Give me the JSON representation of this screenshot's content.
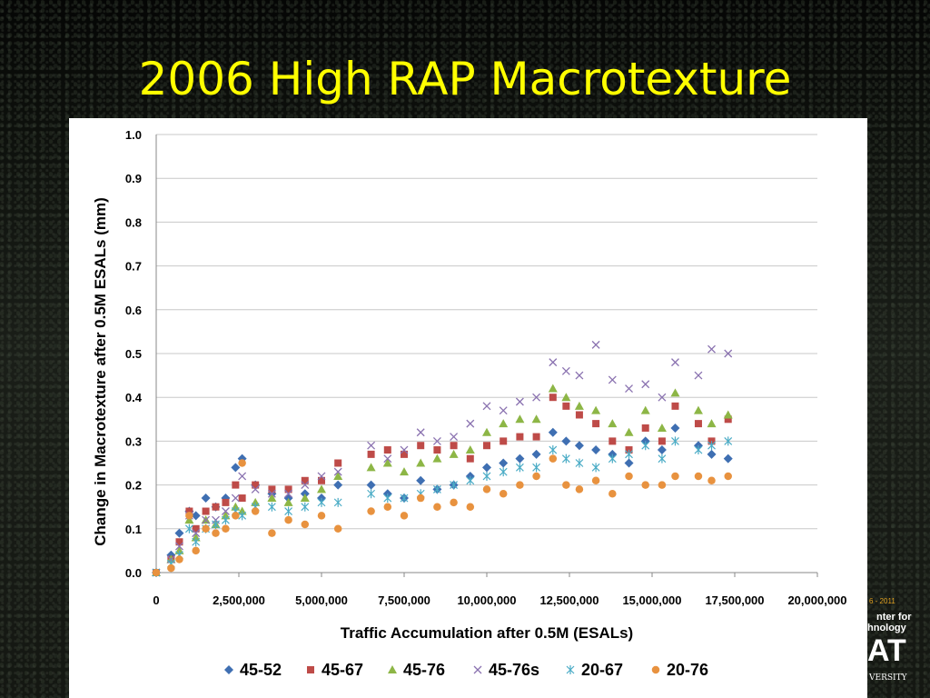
{
  "slide": {
    "title": "2006 High RAP Macrotexture"
  },
  "logo": {
    "years": "6 - 2011",
    "line1": "nter for",
    "line2": "hnology",
    "line3": "AT",
    "line4": "VERSITY"
  },
  "chart_data": {
    "type": "scatter",
    "xlabel": "Traffic Accumulation after 0.5M (ESALs)",
    "ylabel": "Change in Macrotexture after 0.5M ESALs (mm)",
    "xlim": [
      0,
      20000000
    ],
    "ylim": [
      0,
      1.0
    ],
    "x_ticks": [
      0,
      2500000,
      5000000,
      7500000,
      10000000,
      12500000,
      15000000,
      17500000,
      20000000
    ],
    "x_tick_labels": [
      "0",
      "2,500,000",
      "5,000,000",
      "7,500,000",
      "10,000,000",
      "12,500,000",
      "15,000,000",
      "17,500,000",
      "20,000,000"
    ],
    "y_ticks": [
      0,
      0.1,
      0.2,
      0.3,
      0.4,
      0.5,
      0.6,
      0.7,
      0.8,
      0.9,
      1.0
    ],
    "y_tick_labels": [
      "0.0",
      "0.1",
      "0.2",
      "0.3",
      "0.4",
      "0.5",
      "0.6",
      "0.7",
      "0.8",
      "0.9",
      "1.0"
    ],
    "grid": "horizontal",
    "legend_position": "bottom",
    "series": [
      {
        "name": "45-52",
        "marker": "diamond",
        "color": "#3f6fb2",
        "x": [
          0,
          450000,
          700000,
          1000000,
          1200000,
          1500000,
          1800000,
          2100000,
          2400000,
          2600000,
          3000000,
          3500000,
          4000000,
          4500000,
          5000000,
          5500000,
          6500000,
          7000000,
          7500000,
          8000000,
          8500000,
          9000000,
          9500000,
          10000000,
          10500000,
          11000000,
          11500000,
          12000000,
          12400000,
          12800000,
          13300000,
          13800000,
          14300000,
          14800000,
          15300000,
          15700000,
          16400000,
          16800000,
          17300000
        ],
        "y": [
          0,
          0.04,
          0.09,
          0.14,
          0.13,
          0.17,
          0.15,
          0.17,
          0.24,
          0.26,
          0.2,
          0.18,
          0.17,
          0.18,
          0.17,
          0.2,
          0.2,
          0.18,
          0.17,
          0.21,
          0.19,
          0.2,
          0.22,
          0.24,
          0.25,
          0.26,
          0.27,
          0.32,
          0.3,
          0.29,
          0.28,
          0.27,
          0.25,
          0.3,
          0.28,
          0.33,
          0.29,
          0.27,
          0.26
        ]
      },
      {
        "name": "45-67",
        "marker": "square",
        "color": "#be4b48",
        "x": [
          0,
          450000,
          700000,
          1000000,
          1200000,
          1500000,
          1800000,
          2100000,
          2400000,
          2600000,
          3000000,
          3500000,
          4000000,
          4500000,
          5000000,
          5500000,
          6500000,
          7000000,
          7500000,
          8000000,
          8500000,
          9000000,
          9500000,
          10000000,
          10500000,
          11000000,
          11500000,
          12000000,
          12400000,
          12800000,
          13300000,
          13800000,
          14300000,
          14800000,
          15300000,
          15700000,
          16400000,
          16800000,
          17300000
        ],
        "y": [
          0,
          0.03,
          0.07,
          0.14,
          0.1,
          0.14,
          0.15,
          0.16,
          0.2,
          0.17,
          0.2,
          0.19,
          0.19,
          0.21,
          0.21,
          0.25,
          0.27,
          0.28,
          0.27,
          0.29,
          0.28,
          0.29,
          0.26,
          0.29,
          0.3,
          0.31,
          0.31,
          0.4,
          0.38,
          0.36,
          0.34,
          0.3,
          0.28,
          0.33,
          0.3,
          0.38,
          0.34,
          0.3,
          0.35
        ]
      },
      {
        "name": "45-76",
        "marker": "triangle",
        "color": "#8db646",
        "x": [
          0,
          450000,
          700000,
          1000000,
          1200000,
          1500000,
          1800000,
          2100000,
          2400000,
          2600000,
          3000000,
          3500000,
          4000000,
          4500000,
          5000000,
          5500000,
          6500000,
          7000000,
          7500000,
          8000000,
          8500000,
          9000000,
          9500000,
          10000000,
          10500000,
          11000000,
          11500000,
          12000000,
          12400000,
          12800000,
          13300000,
          13800000,
          14300000,
          14800000,
          15300000,
          15700000,
          16400000,
          16800000,
          17300000
        ],
        "y": [
          0,
          0.03,
          0.05,
          0.12,
          0.08,
          0.12,
          0.11,
          0.13,
          0.15,
          0.14,
          0.16,
          0.17,
          0.16,
          0.17,
          0.19,
          0.22,
          0.24,
          0.25,
          0.23,
          0.25,
          0.26,
          0.27,
          0.28,
          0.32,
          0.34,
          0.35,
          0.35,
          0.42,
          0.4,
          0.38,
          0.37,
          0.34,
          0.32,
          0.37,
          0.33,
          0.41,
          0.37,
          0.34,
          0.36
        ]
      },
      {
        "name": "45-76s",
        "marker": "x",
        "color": "#8a72b0",
        "x": [
          0,
          450000,
          700000,
          1000000,
          1200000,
          1500000,
          1800000,
          2100000,
          2400000,
          2600000,
          3000000,
          3500000,
          4000000,
          4500000,
          5000000,
          5500000,
          6500000,
          7000000,
          7500000,
          8000000,
          8500000,
          9000000,
          9500000,
          10000000,
          10500000,
          11000000,
          11500000,
          12000000,
          12400000,
          12800000,
          13300000,
          13800000,
          14300000,
          14800000,
          15300000,
          15700000,
          16400000,
          16800000,
          17300000
        ],
        "y": [
          0,
          0.03,
          0.06,
          0.13,
          0.09,
          0.12,
          0.12,
          0.14,
          0.17,
          0.22,
          0.19,
          0.18,
          0.18,
          0.2,
          0.22,
          0.23,
          0.29,
          0.26,
          0.28,
          0.32,
          0.3,
          0.31,
          0.34,
          0.38,
          0.37,
          0.39,
          0.4,
          0.48,
          0.46,
          0.45,
          0.52,
          0.44,
          0.42,
          0.43,
          0.4,
          0.48,
          0.45,
          0.51,
          0.5
        ]
      },
      {
        "name": "20-67",
        "marker": "star",
        "color": "#4bacc6",
        "x": [
          0,
          450000,
          700000,
          1000000,
          1200000,
          1500000,
          1800000,
          2100000,
          2400000,
          2600000,
          3000000,
          3500000,
          4000000,
          4500000,
          5000000,
          5500000,
          6500000,
          7000000,
          7500000,
          8000000,
          8500000,
          9000000,
          9500000,
          10000000,
          10500000,
          11000000,
          11500000,
          12000000,
          12400000,
          12800000,
          13300000,
          13800000,
          14300000,
          14800000,
          15300000,
          15700000,
          16400000,
          16800000,
          17300000
        ],
        "y": [
          0,
          0.02,
          0.04,
          0.1,
          0.07,
          0.1,
          0.11,
          0.12,
          0.14,
          0.13,
          0.15,
          0.15,
          0.14,
          0.15,
          0.16,
          0.16,
          0.18,
          0.17,
          0.17,
          0.18,
          0.19,
          0.2,
          0.21,
          0.22,
          0.23,
          0.24,
          0.24,
          0.28,
          0.26,
          0.25,
          0.24,
          0.26,
          0.27,
          0.29,
          0.26,
          0.3,
          0.28,
          0.29,
          0.3
        ]
      },
      {
        "name": "20-76",
        "marker": "circle",
        "color": "#e8923f",
        "x": [
          0,
          450000,
          700000,
          1000000,
          1200000,
          1500000,
          1800000,
          2100000,
          2400000,
          2600000,
          3000000,
          3500000,
          4000000,
          4500000,
          5000000,
          5500000,
          6500000,
          7000000,
          7500000,
          8000000,
          8500000,
          9000000,
          9500000,
          10000000,
          10500000,
          11000000,
          11500000,
          12000000,
          12400000,
          12800000,
          13300000,
          13800000,
          14300000,
          14800000,
          15300000,
          15700000,
          16400000,
          16800000,
          17300000
        ],
        "y": [
          0,
          0.01,
          0.03,
          0.13,
          0.05,
          0.1,
          0.09,
          0.1,
          0.13,
          0.25,
          0.14,
          0.09,
          0.12,
          0.11,
          0.13,
          0.1,
          0.14,
          0.15,
          0.13,
          0.17,
          0.15,
          0.16,
          0.15,
          0.19,
          0.18,
          0.2,
          0.22,
          0.26,
          0.2,
          0.19,
          0.21,
          0.18,
          0.22,
          0.2,
          0.2,
          0.22,
          0.22,
          0.21,
          0.22
        ]
      }
    ]
  }
}
